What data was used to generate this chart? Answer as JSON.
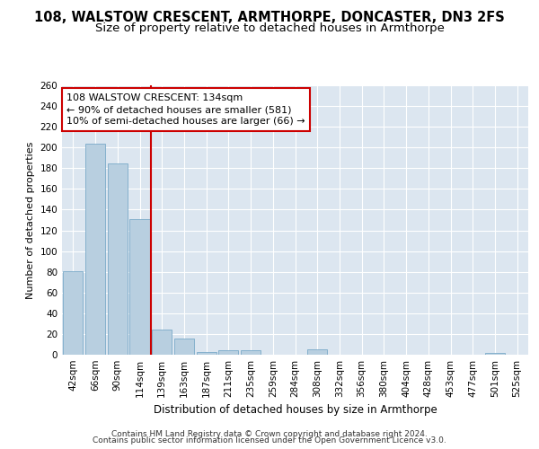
{
  "title1": "108, WALSTOW CRESCENT, ARMTHORPE, DONCASTER, DN3 2FS",
  "title2": "Size of property relative to detached houses in Armthorpe",
  "xlabel": "Distribution of detached houses by size in Armthorpe",
  "ylabel": "Number of detached properties",
  "categories": [
    "42sqm",
    "66sqm",
    "90sqm",
    "114sqm",
    "139sqm",
    "163sqm",
    "187sqm",
    "211sqm",
    "235sqm",
    "259sqm",
    "284sqm",
    "308sqm",
    "332sqm",
    "356sqm",
    "380sqm",
    "404sqm",
    "428sqm",
    "453sqm",
    "477sqm",
    "501sqm",
    "525sqm"
  ],
  "values": [
    81,
    204,
    185,
    131,
    24,
    16,
    3,
    4,
    4,
    0,
    0,
    5,
    0,
    0,
    0,
    0,
    0,
    0,
    0,
    2,
    0
  ],
  "bar_color": "#b8cfe0",
  "bar_edge_color": "#7aaac8",
  "vline_color": "#cc0000",
  "annotation_line1": "108 WALSTOW CRESCENT: 134sqm",
  "annotation_line2": "← 90% of detached houses are smaller (581)",
  "annotation_line3": "10% of semi-detached houses are larger (66) →",
  "annotation_box_color": "white",
  "annotation_box_edge": "#cc0000",
  "ylim": [
    0,
    260
  ],
  "yticks": [
    0,
    20,
    40,
    60,
    80,
    100,
    120,
    140,
    160,
    180,
    200,
    220,
    240,
    260
  ],
  "bg_color": "#dce6f0",
  "grid_color": "white",
  "footer1": "Contains HM Land Registry data © Crown copyright and database right 2024.",
  "footer2": "Contains public sector information licensed under the Open Government Licence v3.0.",
  "title1_fontsize": 10.5,
  "title2_fontsize": 9.5,
  "xlabel_fontsize": 8.5,
  "ylabel_fontsize": 8,
  "tick_fontsize": 7.5,
  "annot_fontsize": 8,
  "footer_fontsize": 6.5
}
